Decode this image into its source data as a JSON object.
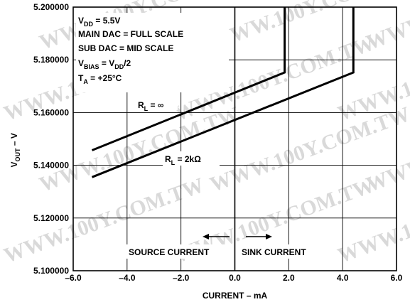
{
  "chart_data": {
    "type": "line",
    "xlabel": "CURRENT – mA",
    "ylabel": "V",
    "ylabel_sub": "OUT",
    "xlim": [
      -6.0,
      6.0
    ],
    "ylim": [
      5.1,
      5.2
    ],
    "x_ticks": [
      -6.0,
      -4.0,
      -2.0,
      0.0,
      2.0,
      4.0,
      6.0
    ],
    "x_tick_labels": [
      "–6.0",
      "–4.0",
      "–2.0",
      "0.0",
      "2.0",
      "4.0",
      "6.0"
    ],
    "y_ticks": [
      5.1,
      5.12,
      5.14,
      5.16,
      5.18,
      5.2
    ],
    "y_tick_labels": [
      "5.100000",
      "5.120000",
      "5.140000",
      "5.160000",
      "5.180000",
      "5.200000"
    ],
    "grid": true,
    "series": [
      {
        "name": "RL = ∞",
        "x": [
          -5.3,
          1.85,
          1.85
        ],
        "y": [
          5.1457,
          5.1752,
          5.2
        ]
      },
      {
        "name": "RL = 2kΩ",
        "x": [
          -5.3,
          4.4,
          4.4
        ],
        "y": [
          5.1355,
          5.1752,
          5.2
        ]
      }
    ],
    "series_labels": [
      {
        "main": "R",
        "sub": "L",
        "rest": " = ∞"
      },
      {
        "main": "R",
        "sub": "L",
        "rest": " = 2kΩ"
      }
    ],
    "conditions": [
      {
        "main": "V",
        "sub": "DD",
        "rest": " = 5.5V",
        "sub2": "",
        "rest2": ""
      },
      {
        "main": "MAIN DAC = FULL SCALE",
        "sub": "",
        "rest": "",
        "sub2": "",
        "rest2": ""
      },
      {
        "main": "SUB DAC = MID SCALE",
        "sub": "",
        "rest": "",
        "sub2": "",
        "rest2": ""
      },
      {
        "main": "V",
        "sub": "BIAS",
        "rest": " = V",
        "sub2": "DD",
        "rest2": "/2"
      },
      {
        "main": "T",
        "sub": "A",
        "rest": " = +25°C",
        "sub2": "",
        "rest2": ""
      }
    ],
    "annotations": {
      "source": "SOURCE CURRENT",
      "sink": "SINK CURRENT"
    },
    "watermark": "WWW.100Y.COM.TW"
  }
}
